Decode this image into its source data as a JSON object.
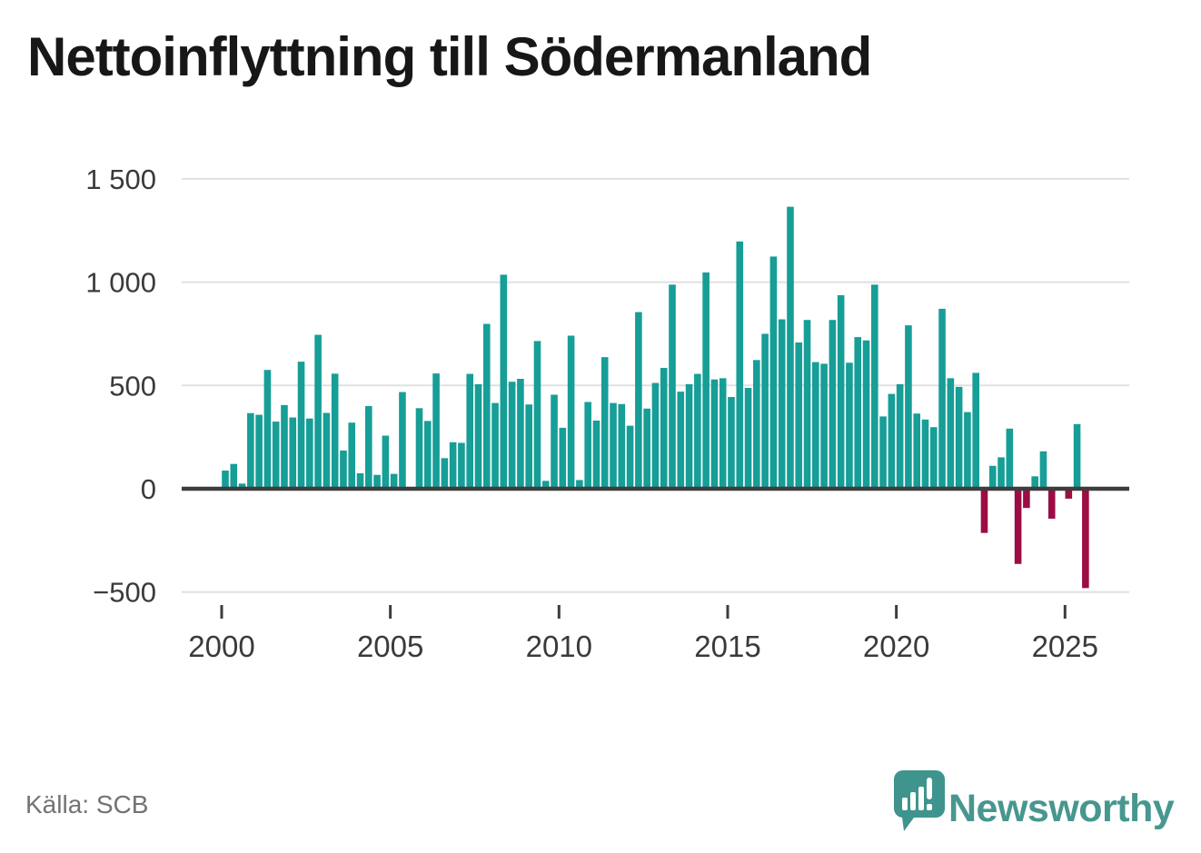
{
  "header": {
    "title": "Nettoinflyttning till Södermanland"
  },
  "footer": {
    "source": "Källa: SCB",
    "brand": "Newsworthy"
  },
  "colors": {
    "positive": "#169e97",
    "negative": "#9c0d45",
    "grid": "#e0e0e0",
    "zero_line": "#3d3d3d",
    "axis_text": "#3a3a3a",
    "title_text": "#171717",
    "source_text": "#737373",
    "brand_teal": "#47978f",
    "logo_fill": "#3f948d"
  },
  "chart_data": {
    "type": "bar",
    "title": "Nettoinflyttning till Södermanland",
    "frequency": "quarterly",
    "categories": [
      "2000 Q1",
      "2000 Q2",
      "2000 Q3",
      "2000 Q4",
      "2001 Q1",
      "2001 Q2",
      "2001 Q3",
      "2001 Q4",
      "2002 Q1",
      "2002 Q2",
      "2002 Q3",
      "2002 Q4",
      "2003 Q1",
      "2003 Q2",
      "2003 Q3",
      "2003 Q4",
      "2004 Q1",
      "2004 Q2",
      "2004 Q3",
      "2004 Q4",
      "2005 Q1",
      "2005 Q2",
      "2005 Q3",
      "2005 Q4",
      "2006 Q1",
      "2006 Q2",
      "2006 Q3",
      "2006 Q4",
      "2007 Q1",
      "2007 Q2",
      "2007 Q3",
      "2007 Q4",
      "2008 Q1",
      "2008 Q2",
      "2008 Q3",
      "2008 Q4",
      "2009 Q1",
      "2009 Q2",
      "2009 Q3",
      "2009 Q4",
      "2010 Q1",
      "2010 Q2",
      "2010 Q3",
      "2010 Q4",
      "2011 Q1",
      "2011 Q2",
      "2011 Q3",
      "2011 Q4",
      "2012 Q1",
      "2012 Q2",
      "2012 Q3",
      "2012 Q4",
      "2013 Q1",
      "2013 Q2",
      "2013 Q3",
      "2013 Q4",
      "2014 Q1",
      "2014 Q2",
      "2014 Q3",
      "2014 Q4",
      "2015 Q1",
      "2015 Q2",
      "2015 Q3",
      "2015 Q4",
      "2016 Q1",
      "2016 Q2",
      "2016 Q3",
      "2016 Q4",
      "2017 Q1",
      "2017 Q2",
      "2017 Q3",
      "2017 Q4",
      "2018 Q1",
      "2018 Q2",
      "2018 Q3",
      "2018 Q4",
      "2019 Q1",
      "2019 Q2",
      "2019 Q3",
      "2019 Q4",
      "2020 Q1",
      "2020 Q2",
      "2020 Q3",
      "2020 Q4",
      "2021 Q1",
      "2021 Q2",
      "2021 Q3",
      "2021 Q4",
      "2022 Q1",
      "2022 Q2",
      "2022 Q3",
      "2022 Q4",
      "2023 Q1",
      "2023 Q2",
      "2023 Q3",
      "2023 Q4",
      "2024 Q1",
      "2024 Q2",
      "2024 Q3",
      "2024 Q4",
      "2025 Q1",
      "2025 Q2",
      "2025 Q3"
    ],
    "values": [
      88,
      120,
      25,
      366,
      358,
      575,
      325,
      405,
      345,
      615,
      340,
      745,
      367,
      557,
      185,
      320,
      75,
      400,
      67,
      257,
      72,
      468,
      2,
      390,
      328,
      558,
      148,
      225,
      222,
      556,
      506,
      798,
      415,
      1036,
      518,
      532,
      408,
      715,
      38,
      455,
      295,
      741,
      42,
      420,
      330,
      637,
      415,
      410,
      305,
      855,
      388,
      512,
      585,
      988,
      470,
      506,
      556,
      1047,
      529,
      535,
      444,
      1197,
      488,
      623,
      750,
      1124,
      820,
      1365,
      708,
      817,
      613,
      605,
      817,
      937,
      610,
      734,
      718,
      988,
      350,
      459,
      506,
      791,
      364,
      335,
      298,
      871,
      535,
      493,
      371,
      561,
      -214,
      111,
      152,
      291,
      -364,
      -93,
      60,
      181,
      -145,
      2,
      -48,
      313,
      -481
    ],
    "ylim": [
      -500,
      1500
    ],
    "yticks": [
      {
        "label": "1 500",
        "value": 1500
      },
      {
        "label": "1 000",
        "value": 1000
      },
      {
        "label": "500",
        "value": 500
      },
      {
        "label": "0",
        "value": 0
      },
      {
        "label": "−500",
        "value": -500
      }
    ],
    "xticks": [
      {
        "label": "2000",
        "index": 0
      },
      {
        "label": "2005",
        "index": 20
      },
      {
        "label": "2010",
        "index": 40
      },
      {
        "label": "2015",
        "index": 60
      },
      {
        "label": "2020",
        "index": 80
      },
      {
        "label": "2025",
        "index": 100
      }
    ],
    "grid": "horizontal",
    "legend": "none"
  }
}
